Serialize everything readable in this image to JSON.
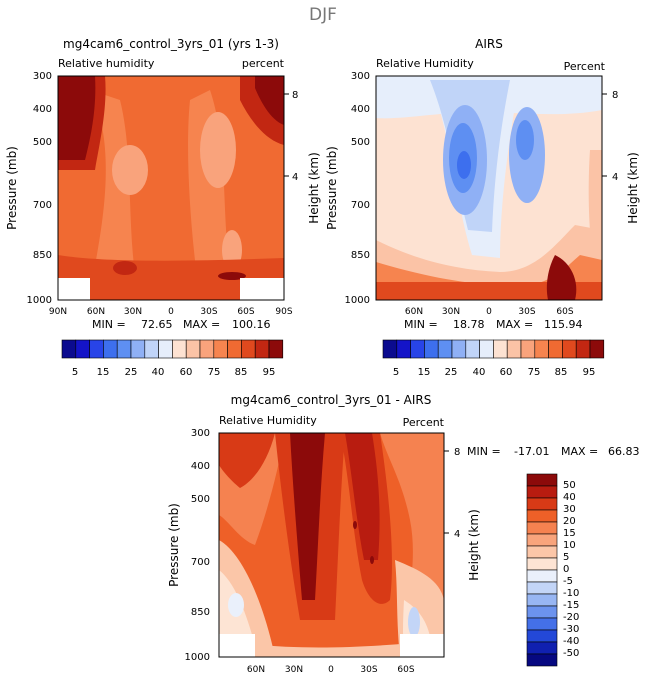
{
  "figure": {
    "title": "DJF"
  },
  "chart_data": [
    {
      "type": "heatmap",
      "title": "mg4cam6_control_3yrs_01 (yrs 1-3)",
      "subtitle_left": "Relative humidity",
      "subtitle_right": "percent",
      "ylabel": "Pressure (mb)",
      "ylabel_right": "Height (km)",
      "yticks": [
        "300",
        "400",
        "500",
        "700",
        "850",
        "1000"
      ],
      "yticks_right": [
        "8",
        "4"
      ],
      "xticks": [
        "90N",
        "60N",
        "30N",
        "0",
        "30S",
        "60S",
        "90S"
      ],
      "min_label": "MIN =",
      "min_value": "72.65",
      "max_label": "MAX =",
      "max_value": "100.16",
      "colorbar_labels": [
        "5",
        "15",
        "25",
        "40",
        "60",
        "75",
        "85",
        "95"
      ]
    },
    {
      "type": "heatmap",
      "title": "AIRS",
      "subtitle_left": "Relative Humidity",
      "subtitle_right": "Percent",
      "ylabel": "Pressure (mb)",
      "ylabel_right": "Height (km)",
      "yticks": [
        "300",
        "400",
        "500",
        "700",
        "850",
        "1000"
      ],
      "yticks_right": [
        "8",
        "4"
      ],
      "xticks": [
        "60N",
        "30N",
        "0",
        "30S",
        "60S"
      ],
      "min_label": "MIN =",
      "min_value": "18.78",
      "max_label": "MAX =",
      "max_value": "115.94",
      "colorbar_labels": [
        "5",
        "15",
        "25",
        "40",
        "60",
        "75",
        "85",
        "95"
      ]
    },
    {
      "type": "heatmap",
      "title": "mg4cam6_control_3yrs_01 - AIRS",
      "subtitle_left": "Relative Humidity",
      "subtitle_right": "Percent",
      "ylabel": "Pressure (mb)",
      "ylabel_right": "Height (km)",
      "yticks": [
        "300",
        "400",
        "500",
        "700",
        "850",
        "1000"
      ],
      "yticks_right": [
        "8",
        "4"
      ],
      "xticks": [
        "60N",
        "30N",
        "0",
        "30S",
        "60S"
      ],
      "min_label": "MIN =",
      "min_value": "-17.01",
      "max_label": "MAX =",
      "max_value": "66.83",
      "colorbar_labels": [
        "50",
        "40",
        "30",
        "20",
        "15",
        "10",
        "5",
        "0",
        "-5",
        "-10",
        "-15",
        "-20",
        "-30",
        "-40",
        "-50"
      ]
    }
  ],
  "colors": {
    "abs_scale": [
      "#0b0b8f",
      "#1414c8",
      "#2844e8",
      "#3d6fee",
      "#5e8ff2",
      "#8fb0f5",
      "#c0d4f8",
      "#e6eefb",
      "#fde2d2",
      "#fbc3a6",
      "#f9a37c",
      "#f6844f",
      "#f06a32",
      "#e0491e",
      "#c22712",
      "#8c0a0a"
    ],
    "diff_scale": [
      "#8c0a0a",
      "#b81c10",
      "#d83a16",
      "#ee6028",
      "#f58250",
      "#f8a47c",
      "#fbc6a8",
      "#fde4d4",
      "#eaf0fb",
      "#c3d5f7",
      "#98b6f3",
      "#6c93ee",
      "#4470e8",
      "#2348d8",
      "#1020b0",
      "#060880"
    ],
    "mask": "#ffffff"
  }
}
